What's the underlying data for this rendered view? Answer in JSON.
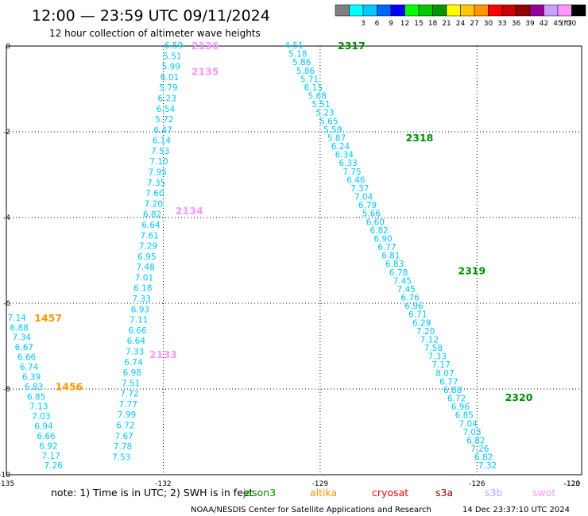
{
  "header": {
    "title": "12:00 — 23:59 UTC 09/11/2024",
    "subtitle": "12 hour collection of altimeter wave heights"
  },
  "legend": {
    "unit": "(ft)",
    "bins": [
      {
        "label": "",
        "color": "#808080"
      },
      {
        "label": "3",
        "color": "#00ffff"
      },
      {
        "label": "6",
        "color": "#00c8ff"
      },
      {
        "label": "9",
        "color": "#0064ff"
      },
      {
        "label": "12",
        "color": "#0000ff"
      },
      {
        "label": "15",
        "color": "#00ff00"
      },
      {
        "label": "18",
        "color": "#00c800"
      },
      {
        "label": "21",
        "color": "#009600"
      },
      {
        "label": "24",
        "color": "#ffff00"
      },
      {
        "label": "27",
        "color": "#ffc800"
      },
      {
        "label": "30",
        "color": "#ff9600"
      },
      {
        "label": "33",
        "color": "#ff0000"
      },
      {
        "label": "36",
        "color": "#c80000"
      },
      {
        "label": "39",
        "color": "#960000"
      },
      {
        "label": "42",
        "color": "#960096"
      },
      {
        "label": "45",
        "color": "#c8a0ff"
      },
      {
        "label": "70",
        "color": "#ff96ff"
      },
      {
        "label": "",
        "color": "#000000"
      }
    ]
  },
  "footer": {
    "note": "note:  1) Time is in UTC; 2) SWH is in feet",
    "satellites": [
      {
        "name": "jason3",
        "color": "#008c00"
      },
      {
        "name": "altika",
        "color": "#ff9600"
      },
      {
        "name": "cryosat",
        "color": "#ff0000"
      },
      {
        "name": "s3a",
        "color": "#960000"
      },
      {
        "name": "s3b",
        "color": "#c8a0ff"
      },
      {
        "name": "swot",
        "color": "#ff96ff"
      }
    ],
    "credit": "NOAA/NESDIS Center for Satellite Applications and Research",
    "timestamp": "14 Dec 23:37:10 UTC 2024"
  },
  "chart_data": {
    "type": "scatter",
    "xlim": [
      -135,
      -124
    ],
    "ylim": [
      -10,
      0
    ],
    "x_ticks": [
      "-135",
      "-132",
      "-129",
      "-126",
      "-123",
      "-120"
    ],
    "x_tick_values": [
      -135,
      -132,
      -129,
      -126,
      -123,
      -120
    ],
    "y_ticks": [
      "0",
      "-2",
      "-4",
      "-6",
      "-8",
      "-10"
    ],
    "y_tick_values": [
      0,
      -2,
      -4,
      -6,
      -8,
      -10
    ],
    "grid": true,
    "value_color": "#00c8ff",
    "pass_labels": [
      {
        "text": "2136",
        "x": -131.2,
        "y": 0.0,
        "color": "#ff96ff"
      },
      {
        "text": "2135",
        "x": -131.2,
        "y": -0.6,
        "color": "#ff96ff"
      },
      {
        "text": "2134",
        "x": -131.5,
        "y": -3.85,
        "color": "#ff96ff"
      },
      {
        "text": "2133",
        "x": -132.0,
        "y": -7.2,
        "color": "#ff96ff"
      },
      {
        "text": "1457",
        "x": -134.2,
        "y": -6.35,
        "color": "#ff9600"
      },
      {
        "text": "1456",
        "x": -133.8,
        "y": -7.95,
        "color": "#ff9600"
      },
      {
        "text": "2317",
        "x": -128.4,
        "y": 0.0,
        "color": "#008c00"
      },
      {
        "text": "2318",
        "x": -127.1,
        "y": -2.15,
        "color": "#008c00"
      },
      {
        "text": "2319",
        "x": -126.1,
        "y": -5.25,
        "color": "#008c00"
      },
      {
        "text": "2320",
        "x": -125.2,
        "y": -8.2,
        "color": "#008c00"
      }
    ],
    "tracks": [
      {
        "values": [
          "6.59",
          "5.51",
          "5.99",
          "6.01",
          "5.79",
          "6.23",
          "6.54",
          "5.72",
          "6.47",
          "6.14",
          "7.53",
          "7.10",
          "7.95",
          "7.35",
          "7.60",
          "7.20",
          "6.82",
          "6.64",
          "7.61",
          "7.29",
          "6.95",
          "7.48",
          "7.01",
          "6.18",
          "7.33",
          "6.93",
          "7.11",
          "6.66",
          "6.64",
          "7.33",
          "6.74",
          "6.98",
          "7.51",
          "7.72",
          "7.77",
          "7.99",
          "6.72",
          "7.67",
          "7.78",
          "7.53"
        ],
        "x_start": -131.8,
        "x_end": -132.8,
        "y_start": 0.0,
        "y_end": -9.6
      },
      {
        "values": [
          "4.51",
          "5.18",
          "5.86",
          "5.86",
          "5.71",
          "6.15",
          "5.68",
          "5.51",
          "5.23",
          "5.65",
          "5.59",
          "5.87",
          "6.24",
          "6.34",
          "6.33",
          "7.75",
          "6.46",
          "7.37",
          "7.04",
          "6.79",
          "5.66",
          "6.60",
          "6.82",
          "6.90",
          "6.77",
          "6.81",
          "6.83",
          "6.78",
          "7.45",
          "7.45",
          "6.76",
          "6.96",
          "6.71",
          "6.29",
          "7.20",
          "7.12",
          "7.58",
          "7.33",
          "7.17",
          "8.07",
          "6.77",
          "6.88",
          "6.72",
          "6.96",
          "6.85",
          "7.04",
          "7.03",
          "6.82",
          "7.26",
          "6.82",
          "7.32"
        ],
        "x_start": -129.5,
        "x_end": -125.8,
        "y_start": 0.0,
        "y_end": -9.8
      },
      {
        "values": [
          "7.14",
          "6.88",
          "7.34",
          "6.67",
          "6.66",
          "6.74",
          "6.39",
          "6.83",
          "6.85",
          "7.13",
          "7.03",
          "6.94",
          "6.66",
          "6.92",
          "7.17",
          "7.26"
        ],
        "x_start": -134.8,
        "x_end": -134.1,
        "y_start": -6.35,
        "y_end": -9.8
      }
    ]
  }
}
